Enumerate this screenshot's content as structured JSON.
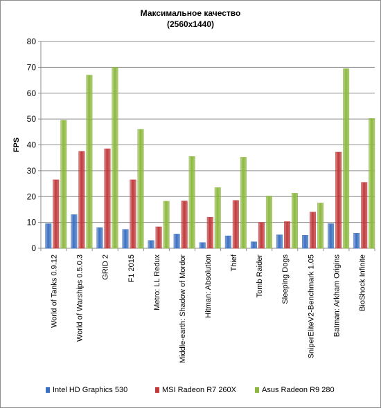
{
  "chart_data": {
    "type": "bar",
    "title": "Максимальное   качество",
    "subtitle": "(2560х1440)",
    "ylabel": "FPS",
    "xlabel": "",
    "ylim": [
      0,
      80
    ],
    "yticks": [
      0,
      10,
      20,
      30,
      40,
      50,
      60,
      70,
      80
    ],
    "grid": true,
    "legend_position": "bottom",
    "categories": [
      "World of Tanks 0.9.12",
      "World of Warships 0.5.0.3",
      "GRID 2",
      "F1 2015",
      "Metro: LL Redux",
      "Middle-earth: Shadow of Mordor",
      "Hitman: Absolution",
      "Thief",
      "Tomb Raider",
      "Sleeping Dogs",
      "SniperEliteV2-Benchmark 1.05",
      "Batman: Arkham Origins",
      "BioShock Infinite"
    ],
    "series": [
      {
        "name": "Intel HD Graphics 530",
        "color": "#3b6fc0",
        "values": [
          9.5,
          13,
          8,
          7.3,
          3,
          5.5,
          2.2,
          4.8,
          2.5,
          5.2,
          5,
          9.5,
          5.8
        ]
      },
      {
        "name": "MSI Radeon R7 260X",
        "color": "#c0393b",
        "values": [
          26.5,
          37.5,
          38.5,
          26.5,
          8.3,
          18.3,
          12,
          18.5,
          10,
          10.3,
          14,
          37.2,
          25.5
        ]
      },
      {
        "name": "Asus Radeon R9 280",
        "color": "#8db840",
        "values": [
          49.5,
          67,
          70,
          46,
          18.2,
          35.5,
          23.5,
          35.2,
          20.2,
          21.3,
          17.5,
          69.5,
          50.2
        ]
      }
    ]
  }
}
